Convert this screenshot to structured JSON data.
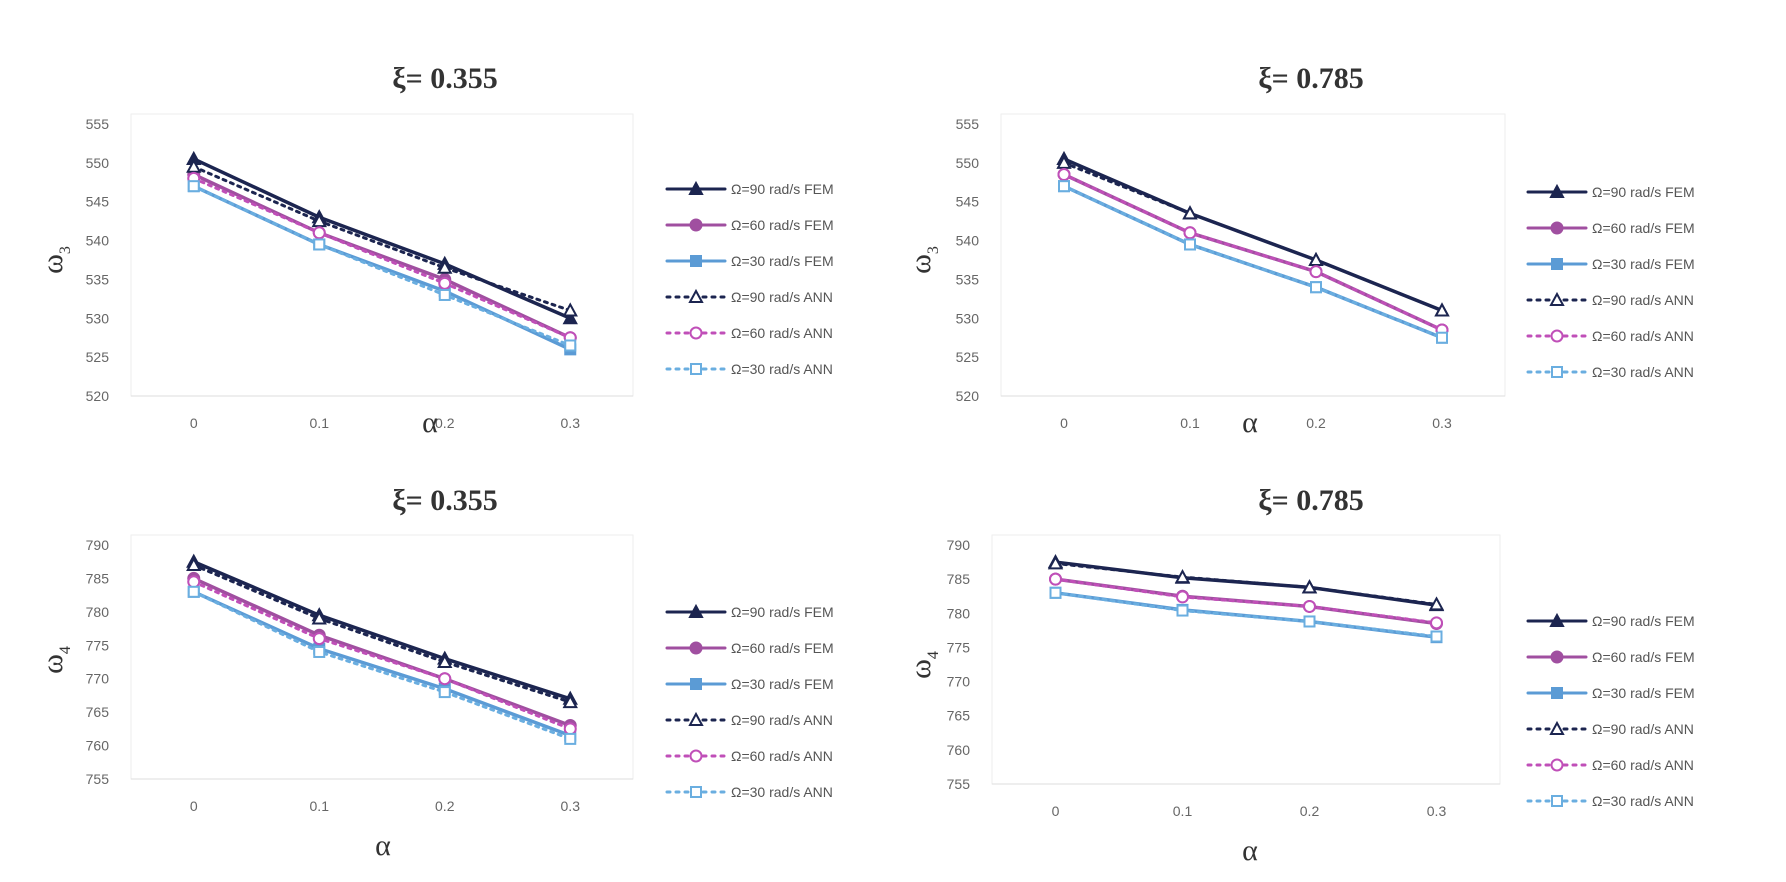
{
  "colors": {
    "fem90": "#1c2550",
    "fem60": "#a04fa0",
    "fem30": "#5b9bd5",
    "ann90": "#1c2550",
    "ann60": "#c04fb8",
    "ann30": "#6aaee0"
  },
  "chart_data": [
    {
      "type": "line",
      "title": "ξ= 0.355",
      "xlabel": "α",
      "ylabel": "ω3",
      "ylabel_main": "ω",
      "ylabel_sub": "3",
      "categories": [
        "0",
        "0.1",
        "0.2",
        "0.3"
      ],
      "ylim": [
        520,
        555
      ],
      "yticks": [
        520,
        525,
        530,
        535,
        540,
        545,
        550,
        555
      ],
      "legend": "right",
      "series": [
        {
          "name": "Ω=90 rad/s FEM",
          "values": [
            550.5,
            543,
            537,
            530
          ]
        },
        {
          "name": "Ω=60 rad/s FEM",
          "values": [
            548.5,
            541,
            535,
            527.5
          ]
        },
        {
          "name": "Ω=30 rad/s FEM",
          "values": [
            547,
            539.5,
            533.5,
            526
          ]
        },
        {
          "name": "Ω=90 rad/s ANN",
          "values": [
            549.5,
            542.5,
            536.5,
            531
          ]
        },
        {
          "name": "Ω=60 rad/s ANN",
          "values": [
            548,
            541,
            534.5,
            527.5
          ]
        },
        {
          "name": "Ω=30 rad/s ANN",
          "values": [
            547,
            539.5,
            533,
            526.5
          ]
        }
      ]
    },
    {
      "type": "line",
      "title": "ξ= 0.785",
      "xlabel": "α",
      "ylabel": "ω3",
      "ylabel_main": "ω",
      "ylabel_sub": "3",
      "categories": [
        "0",
        "0.1",
        "0.2",
        "0.3"
      ],
      "ylim": [
        520,
        555
      ],
      "yticks": [
        520,
        525,
        530,
        535,
        540,
        545,
        550,
        555
      ],
      "legend": "right",
      "series": [
        {
          "name": "Ω=90 rad/s FEM",
          "values": [
            550.5,
            543.5,
            537.5,
            531
          ]
        },
        {
          "name": "Ω=60 rad/s FEM",
          "values": [
            548.5,
            541,
            536,
            528.5
          ]
        },
        {
          "name": "Ω=30 rad/s FEM",
          "values": [
            547,
            539.5,
            534,
            527.5
          ]
        },
        {
          "name": "Ω=90 rad/s ANN",
          "values": [
            550,
            543.5,
            537.5,
            531
          ]
        },
        {
          "name": "Ω=60 rad/s ANN",
          "values": [
            548.5,
            541,
            536,
            528.5
          ]
        },
        {
          "name": "Ω=30 rad/s ANN",
          "values": [
            547,
            539.5,
            534,
            527.5
          ]
        }
      ]
    },
    {
      "type": "line",
      "title": "ξ= 0.355",
      "xlabel": "α",
      "ylabel": "ω4",
      "ylabel_main": "ω",
      "ylabel_sub": "4",
      "categories": [
        "0",
        "0.1",
        "0.2",
        "0.3"
      ],
      "ylim": [
        755,
        790
      ],
      "yticks": [
        755,
        760,
        765,
        770,
        775,
        780,
        785,
        790
      ],
      "legend": "right",
      "series": [
        {
          "name": "Ω=90 rad/s FEM",
          "values": [
            787.5,
            779.5,
            773,
            767
          ]
        },
        {
          "name": "Ω=60 rad/s FEM",
          "values": [
            785,
            776.5,
            770,
            763
          ]
        },
        {
          "name": "Ω=30 rad/s FEM",
          "values": [
            783,
            774.5,
            768.5,
            761.5
          ]
        },
        {
          "name": "Ω=90 rad/s ANN",
          "values": [
            787,
            779,
            772.5,
            766.5
          ]
        },
        {
          "name": "Ω=60 rad/s ANN",
          "values": [
            784.5,
            776,
            770,
            762.5
          ]
        },
        {
          "name": "Ω=30 rad/s ANN",
          "values": [
            783,
            774,
            768,
            761
          ]
        }
      ]
    },
    {
      "type": "line",
      "title": "ξ= 0.785",
      "xlabel": "α",
      "ylabel": "ω4",
      "ylabel_main": "ω",
      "ylabel_sub": "4",
      "categories": [
        "0",
        "0.1",
        "0.2",
        "0.3"
      ],
      "ylim": [
        755,
        790
      ],
      "yticks": [
        755,
        760,
        765,
        770,
        775,
        780,
        785,
        790
      ],
      "legend": "right",
      "series": [
        {
          "name": "Ω=90 rad/s FEM",
          "values": [
            787.5,
            785.2,
            783.8,
            781.2
          ]
        },
        {
          "name": "Ω=60 rad/s FEM",
          "values": [
            785,
            782.5,
            781,
            778.5
          ]
        },
        {
          "name": "Ω=30 rad/s FEM",
          "values": [
            783,
            780.5,
            778.8,
            776.5
          ]
        },
        {
          "name": "Ω=90 rad/s ANN",
          "values": [
            787.3,
            785.3,
            783.8,
            781.3
          ]
        },
        {
          "name": "Ω=60 rad/s ANN",
          "values": [
            785,
            782.4,
            781,
            778.6
          ]
        },
        {
          "name": "Ω=30 rad/s ANN",
          "values": [
            783,
            780.4,
            778.8,
            776.6
          ]
        }
      ]
    }
  ]
}
